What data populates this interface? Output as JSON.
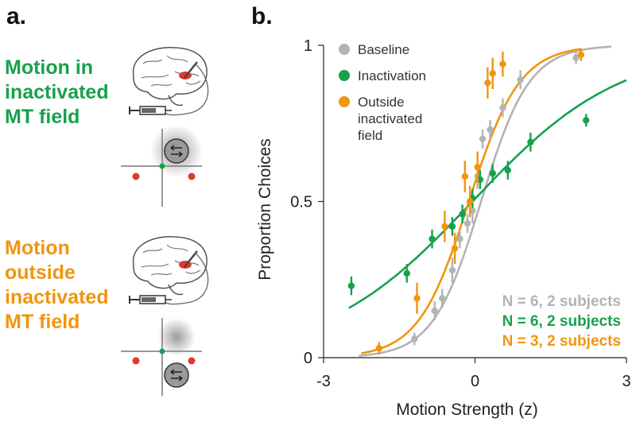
{
  "panel_a": {
    "label": "a.",
    "top_condition": {
      "lines": [
        "Motion in",
        "inactivated",
        "MT field"
      ],
      "color": "#17a14c"
    },
    "bottom_condition": {
      "lines": [
        "Motion",
        "outside",
        "inactivated",
        "MT field"
      ],
      "color": "#f0950f"
    },
    "icons": [
      "brain-icon",
      "syringe-icon",
      "motion-stimulus-icon",
      "fixation-point-icon",
      "choice-target-icon"
    ]
  },
  "panel_b": {
    "label": "b."
  },
  "chart_data": {
    "type": "scatter",
    "xlabel": "Motion Strength (z)",
    "ylabel": "Proportion Choices",
    "xlim": [
      -3,
      3
    ],
    "ylim": [
      0,
      1
    ],
    "xticks": [
      "-3",
      "0",
      "3"
    ],
    "yticks": [
      "0",
      "0.5",
      "1"
    ],
    "legend_placement": "top-left",
    "series": [
      {
        "name": "Baseline",
        "color": "#b3b3b3",
        "fit": {
          "bias": 0.12,
          "slope": 2.1
        },
        "x": [
          -1.2,
          -0.8,
          -0.65,
          -0.45,
          -0.3,
          -0.15,
          -0.05,
          0.05,
          0.15,
          0.3,
          0.55,
          0.9,
          2.0
        ],
        "y": [
          0.06,
          0.15,
          0.19,
          0.28,
          0.38,
          0.43,
          0.47,
          0.58,
          0.7,
          0.73,
          0.8,
          0.89,
          0.96
        ],
        "err": [
          0.02,
          0.03,
          0.03,
          0.04,
          0.03,
          0.03,
          0.04,
          0.04,
          0.03,
          0.03,
          0.03,
          0.03,
          0.02
        ]
      },
      {
        "name": "Inactivation",
        "color": "#17a14c",
        "fit": {
          "bias": -0.05,
          "slope": 0.68
        },
        "x": [
          -2.45,
          -1.35,
          -0.85,
          -0.45,
          -0.25,
          -0.05,
          0.1,
          0.35,
          0.65,
          1.1,
          2.2
        ],
        "y": [
          0.23,
          0.27,
          0.38,
          0.42,
          0.46,
          0.51,
          0.57,
          0.59,
          0.6,
          0.69,
          0.76
        ],
        "err": [
          0.03,
          0.03,
          0.03,
          0.03,
          0.03,
          0.03,
          0.03,
          0.03,
          0.03,
          0.03,
          0.02
        ]
      },
      {
        "name": "Outside inactivated field",
        "color": "#f0950f",
        "fit": {
          "bias": -0.12,
          "slope": 2.0
        },
        "x": [
          -1.9,
          -1.15,
          -0.6,
          -0.4,
          -0.2,
          -0.1,
          0.05,
          0.25,
          0.35,
          0.55,
          2.1
        ],
        "y": [
          0.03,
          0.19,
          0.42,
          0.35,
          0.58,
          0.5,
          0.61,
          0.88,
          0.91,
          0.94,
          0.97
        ],
        "err": [
          0.02,
          0.05,
          0.05,
          0.05,
          0.05,
          0.05,
          0.05,
          0.05,
          0.05,
          0.04,
          0.02
        ]
      }
    ],
    "legend": [
      {
        "lines": [
          "Baseline"
        ],
        "color": "#b3b3b3"
      },
      {
        "lines": [
          "Inactivation"
        ],
        "color": "#17a14c"
      },
      {
        "lines": [
          "Outside",
          "inactivated",
          "field"
        ],
        "color": "#f0950f"
      }
    ],
    "annotations": [
      {
        "text": "N = 6, 2 subjects",
        "color": "#b3b3b3"
      },
      {
        "text": "N = 6, 2 subjects",
        "color": "#17a14c"
      },
      {
        "text": "N = 3, 2 subjects",
        "color": "#f0950f"
      }
    ]
  }
}
